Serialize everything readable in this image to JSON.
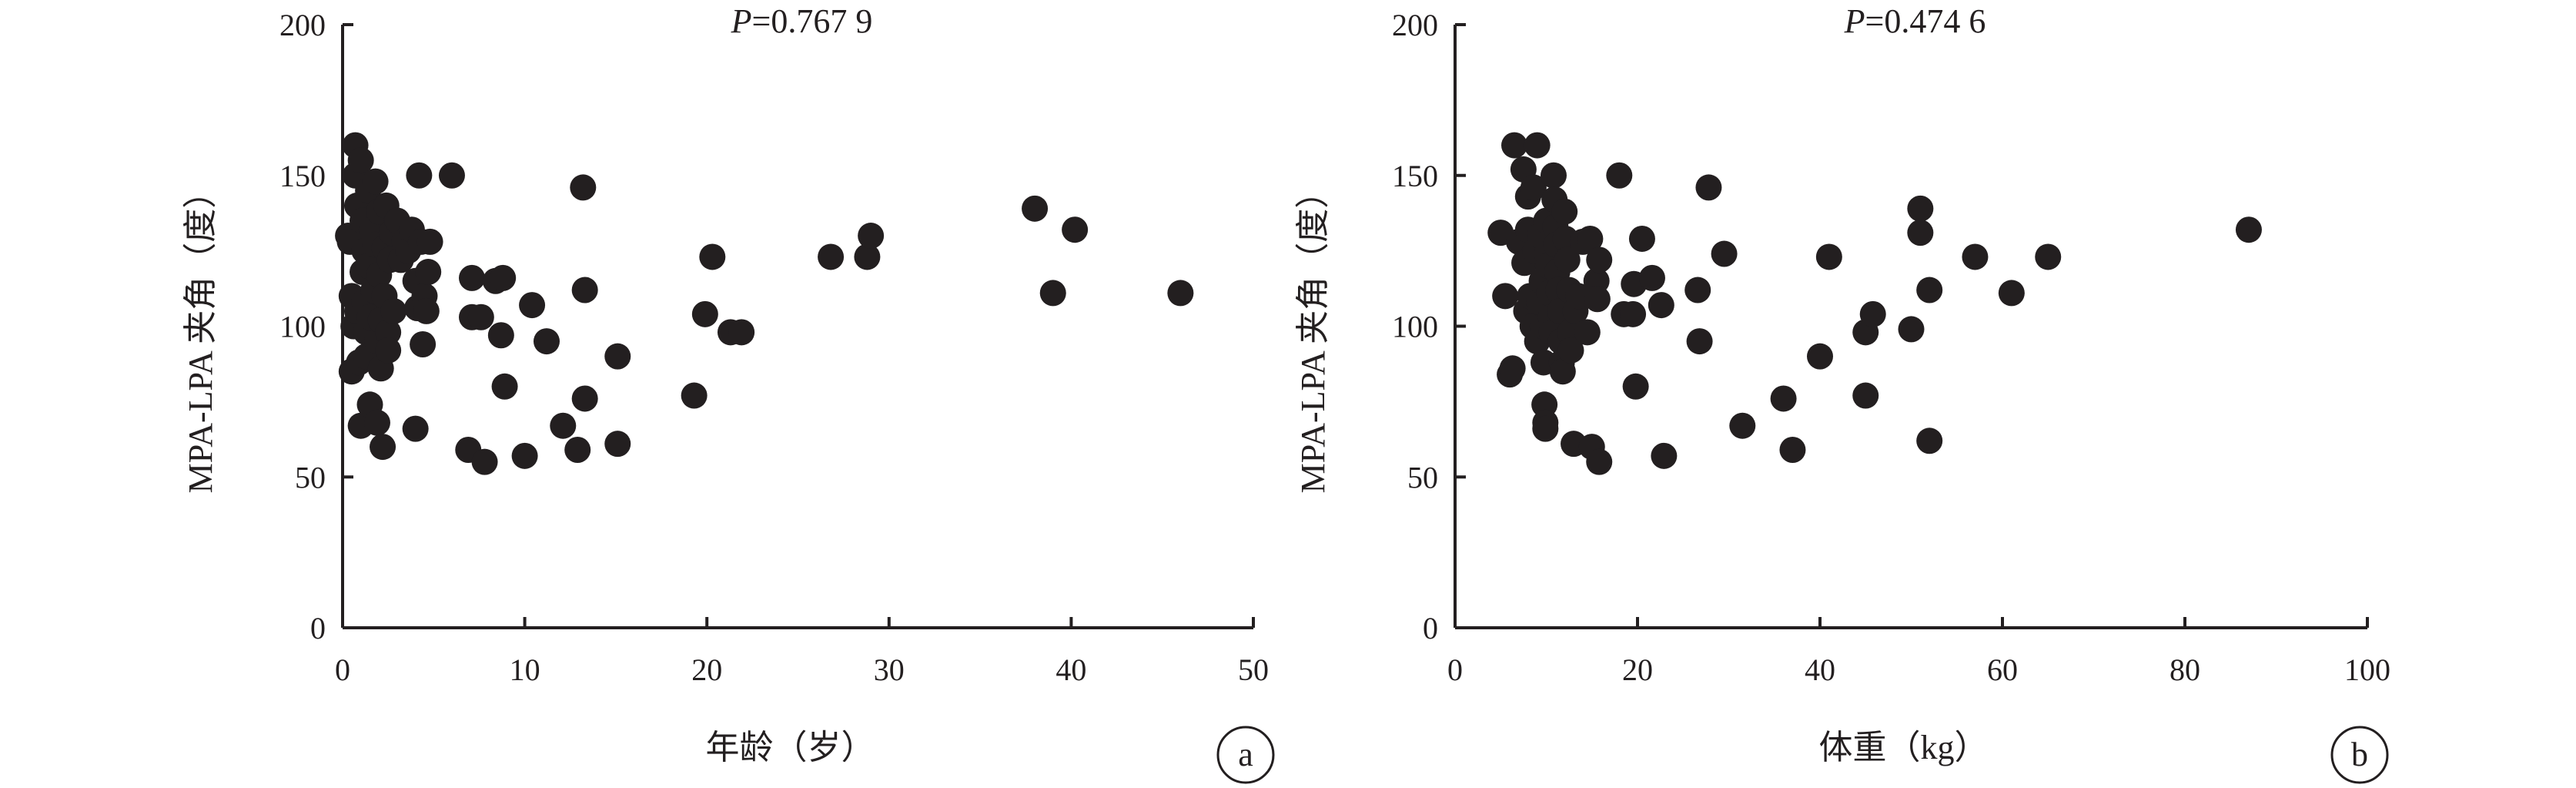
{
  "chart_data": [
    {
      "type": "scatter",
      "panel_label": "a",
      "annotation": {
        "prefix": "P",
        "text": "=0.767 9"
      },
      "xlabel": "年龄（岁）",
      "ylabel": "MPA-LPA 夹角（度）",
      "xlim": [
        0,
        50
      ],
      "ylim": [
        0,
        200
      ],
      "xticks": [
        0,
        10,
        20,
        30,
        40,
        50
      ],
      "yticks": [
        0,
        50,
        100,
        150,
        200
      ],
      "grid": false,
      "points": [
        [
          0.3,
          130
        ],
        [
          0.4,
          128
        ],
        [
          0.5,
          110
        ],
        [
          0.5,
          85
        ],
        [
          0.6,
          100
        ],
        [
          0.7,
          160
        ],
        [
          0.7,
          150
        ],
        [
          0.8,
          140
        ],
        [
          0.8,
          105
        ],
        [
          0.9,
          88
        ],
        [
          1.0,
          67
        ],
        [
          1.0,
          155
        ],
        [
          1.1,
          135
        ],
        [
          1.1,
          118
        ],
        [
          1.2,
          125
        ],
        [
          1.2,
          108
        ],
        [
          1.3,
          98
        ],
        [
          1.3,
          90
        ],
        [
          1.4,
          145
        ],
        [
          1.4,
          120
        ],
        [
          1.5,
          103
        ],
        [
          1.5,
          74
        ],
        [
          1.6,
          132
        ],
        [
          1.7,
          112
        ],
        [
          1.8,
          148
        ],
        [
          1.8,
          127
        ],
        [
          1.9,
          95
        ],
        [
          1.9,
          68
        ],
        [
          2.0,
          138
        ],
        [
          2.0,
          117
        ],
        [
          2.1,
          102
        ],
        [
          2.1,
          86
        ],
        [
          2.2,
          60
        ],
        [
          2.3,
          126
        ],
        [
          2.3,
          110
        ],
        [
          2.4,
          140
        ],
        [
          2.5,
          98
        ],
        [
          2.5,
          92
        ],
        [
          2.6,
          122
        ],
        [
          2.7,
          131
        ],
        [
          2.8,
          105
        ],
        [
          3.0,
          135
        ],
        [
          3.2,
          122
        ],
        [
          3.4,
          128
        ],
        [
          3.6,
          125
        ],
        [
          3.8,
          132
        ],
        [
          4.0,
          66
        ],
        [
          4.0,
          115
        ],
        [
          4.1,
          106
        ],
        [
          4.2,
          150
        ],
        [
          4.3,
          128
        ],
        [
          4.4,
          94
        ],
        [
          4.5,
          110
        ],
        [
          4.6,
          105
        ],
        [
          4.7,
          118
        ],
        [
          4.8,
          128
        ],
        [
          6.0,
          150
        ],
        [
          6.9,
          59
        ],
        [
          7.1,
          116
        ],
        [
          7.1,
          103
        ],
        [
          7.6,
          103
        ],
        [
          7.8,
          55
        ],
        [
          8.4,
          115
        ],
        [
          8.7,
          97
        ],
        [
          8.8,
          116
        ],
        [
          8.9,
          80
        ],
        [
          10.0,
          57
        ],
        [
          10.4,
          107
        ],
        [
          11.2,
          95
        ],
        [
          12.1,
          67
        ],
        [
          12.9,
          59
        ],
        [
          13.2,
          146
        ],
        [
          13.3,
          76
        ],
        [
          13.3,
          112
        ],
        [
          15.1,
          90
        ],
        [
          15.1,
          61
        ],
        [
          19.3,
          77
        ],
        [
          19.9,
          104
        ],
        [
          20.3,
          123
        ],
        [
          21.3,
          98
        ],
        [
          21.9,
          98
        ],
        [
          26.8,
          123
        ],
        [
          28.8,
          123
        ],
        [
          29.0,
          130
        ],
        [
          38.0,
          139
        ],
        [
          39.0,
          111
        ],
        [
          40.2,
          132
        ],
        [
          46.0,
          111
        ]
      ]
    },
    {
      "type": "scatter",
      "panel_label": "b",
      "annotation": {
        "prefix": "P",
        "text": "=0.474 6"
      },
      "xlabel": "体重（kg）",
      "ylabel": "MPA-LPA 夹角（度）",
      "xlim": [
        0,
        100
      ],
      "ylim": [
        0,
        200
      ],
      "xticks": [
        0,
        20,
        40,
        60,
        80,
        100
      ],
      "yticks": [
        0,
        50,
        100,
        150,
        200
      ],
      "grid": false,
      "points": [
        [
          5.0,
          131
        ],
        [
          5.5,
          110
        ],
        [
          6.0,
          84
        ],
        [
          6.3,
          86
        ],
        [
          6.5,
          160
        ],
        [
          7.0,
          128
        ],
        [
          7.5,
          152
        ],
        [
          7.6,
          121
        ],
        [
          7.8,
          105
        ],
        [
          8.0,
          132
        ],
        [
          8.0,
          143
        ],
        [
          8.2,
          110
        ],
        [
          8.5,
          100
        ],
        [
          8.6,
          146
        ],
        [
          8.8,
          125
        ],
        [
          9.0,
          160
        ],
        [
          9.0,
          95
        ],
        [
          9.2,
          108
        ],
        [
          9.3,
          130
        ],
        [
          9.5,
          115
        ],
        [
          9.6,
          100
        ],
        [
          9.7,
          88
        ],
        [
          9.8,
          74
        ],
        [
          9.9,
          68
        ],
        [
          9.9,
          66
        ],
        [
          10.0,
          135
        ],
        [
          10.1,
          124
        ],
        [
          10.2,
          120
        ],
        [
          10.3,
          111
        ],
        [
          10.5,
          103
        ],
        [
          10.6,
          98
        ],
        [
          10.8,
          150
        ],
        [
          10.9,
          142
        ],
        [
          11.0,
          133
        ],
        [
          11.1,
          127
        ],
        [
          11.2,
          118
        ],
        [
          11.3,
          112
        ],
        [
          11.5,
          105
        ],
        [
          11.6,
          95
        ],
        [
          11.7,
          88
        ],
        [
          11.8,
          85
        ],
        [
          12.0,
          138
        ],
        [
          12.1,
          129
        ],
        [
          12.3,
          122
        ],
        [
          12.5,
          112
        ],
        [
          12.6,
          98
        ],
        [
          12.7,
          92
        ],
        [
          13.0,
          61
        ],
        [
          13.2,
          105
        ],
        [
          13.5,
          110
        ],
        [
          14.0,
          128
        ],
        [
          14.5,
          98
        ],
        [
          14.8,
          129
        ],
        [
          15.0,
          60
        ],
        [
          15.5,
          115
        ],
        [
          15.6,
          109
        ],
        [
          15.8,
          122
        ],
        [
          15.8,
          55
        ],
        [
          18.0,
          150
        ],
        [
          18.5,
          104
        ],
        [
          19.5,
          104
        ],
        [
          19.6,
          114
        ],
        [
          19.8,
          80
        ],
        [
          20.5,
          129
        ],
        [
          21.6,
          116
        ],
        [
          22.6,
          107
        ],
        [
          22.9,
          57
        ],
        [
          26.6,
          112
        ],
        [
          26.8,
          95
        ],
        [
          27.8,
          146
        ],
        [
          29.5,
          124
        ],
        [
          31.5,
          67
        ],
        [
          36.0,
          76
        ],
        [
          37.0,
          59
        ],
        [
          40.0,
          90
        ],
        [
          41.0,
          123
        ],
        [
          45.0,
          77
        ],
        [
          45.0,
          98
        ],
        [
          45.8,
          104
        ],
        [
          50.0,
          99
        ],
        [
          51.0,
          139
        ],
        [
          51.0,
          131
        ],
        [
          52.0,
          112
        ],
        [
          52.0,
          62
        ],
        [
          57.0,
          123
        ],
        [
          61.0,
          111
        ],
        [
          65.0,
          123
        ],
        [
          87.0,
          132
        ]
      ]
    }
  ]
}
